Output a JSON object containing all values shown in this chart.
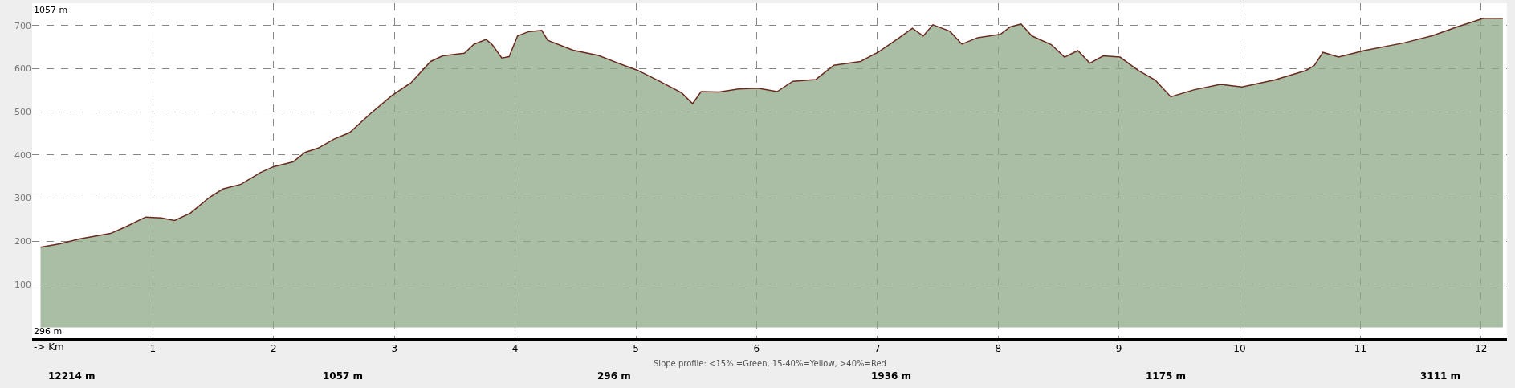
{
  "chart_data": {
    "type": "area",
    "xlabel": "-> Km",
    "x": [
      0.07,
      0.23,
      0.39,
      0.65,
      0.78,
      0.94,
      1.07,
      1.18,
      1.31,
      1.47,
      1.58,
      1.73,
      1.89,
      2.0,
      2.16,
      2.26,
      2.37,
      2.5,
      2.63,
      2.79,
      2.98,
      3.14,
      3.3,
      3.4,
      3.58,
      3.66,
      3.76,
      3.81,
      3.89,
      3.95,
      4.02,
      4.11,
      4.22,
      4.27,
      4.48,
      4.69,
      4.9,
      5.01,
      5.19,
      5.38,
      5.47,
      5.54,
      5.69,
      5.85,
      6.01,
      6.17,
      6.3,
      6.49,
      6.64,
      6.86,
      7.01,
      7.17,
      7.29,
      7.38,
      7.46,
      7.6,
      7.7,
      7.83,
      8.02,
      8.1,
      8.19,
      8.28,
      8.44,
      8.55,
      8.66,
      8.76,
      8.87,
      9.01,
      9.16,
      9.3,
      9.43,
      9.62,
      9.84,
      10.02,
      10.29,
      10.55,
      10.62,
      10.69,
      10.82,
      11.03,
      11.36,
      11.6,
      11.81,
      12.02,
      12.18
    ],
    "series": [
      {
        "color": "#6b2a1f",
        "values": [
          186,
          194,
          205,
          218,
          234,
          256,
          254,
          248,
          265,
          302,
          321,
          332,
          359,
          373,
          384,
          406,
          416,
          437,
          452,
          493,
          538,
          568,
          617,
          630,
          636,
          657,
          668,
          656,
          625,
          628,
          676,
          686,
          689,
          666,
          643,
          631,
          608,
          597,
          572,
          544,
          519,
          547,
          546,
          553,
          555,
          547,
          571,
          575,
          608,
          617,
          639,
          670,
          694,
          676,
          702,
          687,
          657,
          672,
          680,
          697,
          704,
          676,
          656,
          627,
          642,
          613,
          630,
          627,
          596,
          574,
          535,
          551,
          564,
          558,
          574,
          596,
          608,
          638,
          627,
          642,
          660,
          677,
          698,
          717,
          717
        ]
      }
    ],
    "xlim": [
      0,
      12.214
    ],
    "ylim": [
      -25,
      752
    ],
    "xticks": [
      1,
      2,
      3,
      4,
      5,
      6,
      7,
      8,
      9,
      10,
      11,
      12
    ],
    "yticks": [
      100,
      200,
      300,
      400,
      500,
      600,
      700
    ],
    "grid": true,
    "annotations": [
      "1057 m",
      "296 m",
      "Slope profile: <15% =Green, 15-40%=Yellow, >40%=Red",
      "12214 m",
      "1057 m",
      "296 m",
      "1936 m",
      "1175 m",
      "3111 m"
    ]
  }
}
